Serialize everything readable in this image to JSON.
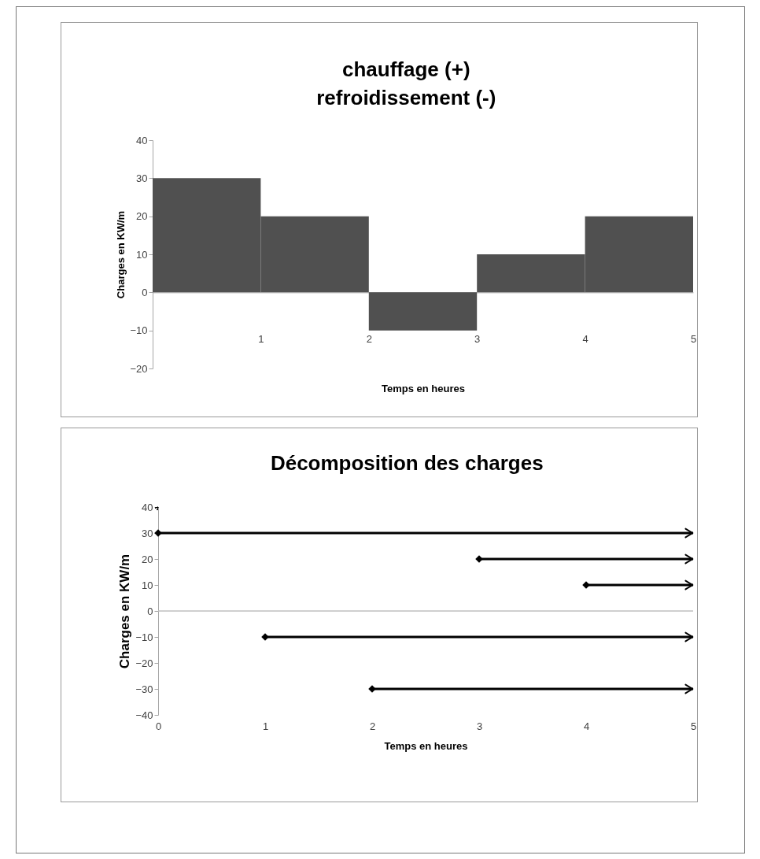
{
  "chart_data": [
    {
      "type": "histogram",
      "title": "chauffage (+)\nrefroidissement (-)",
      "xlabel": "Temps en heures",
      "ylabel": "Charges en KW/m",
      "bins": [
        0,
        1,
        2,
        3,
        4,
        5
      ],
      "values": [
        30,
        20,
        -10,
        10,
        20
      ],
      "color": "#505050",
      "xlim": [
        0,
        5
      ],
      "xticks": [
        1,
        2,
        3,
        4,
        5
      ],
      "ylim": [
        -20,
        40
      ],
      "yticks": [
        -20,
        -10,
        0,
        10,
        20,
        30,
        40
      ]
    },
    {
      "type": "line",
      "title": "Décomposition des charges",
      "xlabel": "Temps en heures",
      "ylabel": "Charges en KW/m",
      "xlim": [
        0,
        5
      ],
      "xticks": [
        0,
        1,
        2,
        3,
        4,
        5
      ],
      "ylim": [
        -40,
        40
      ],
      "yticks": [
        -40,
        -30,
        -20,
        -10,
        0,
        10,
        20,
        30,
        40
      ],
      "marker": "diamond",
      "line_style": "solid",
      "ref_lines": [
        {
          "axis": "y",
          "value": 0,
          "color": "#bfbfbf"
        }
      ],
      "series": [
        {
          "color": "#000000",
          "x": [
            0,
            5
          ],
          "values": [
            30,
            30
          ]
        },
        {
          "color": "#000000",
          "x": [
            3,
            5
          ],
          "values": [
            20,
            20
          ]
        },
        {
          "color": "#000000",
          "x": [
            4,
            5
          ],
          "values": [
            10,
            10
          ]
        },
        {
          "color": "#000000",
          "x": [
            1,
            5
          ],
          "values": [
            -10,
            -10
          ]
        },
        {
          "color": "#000000",
          "x": [
            2,
            5
          ],
          "values": [
            -30,
            -30
          ]
        }
      ]
    }
  ]
}
